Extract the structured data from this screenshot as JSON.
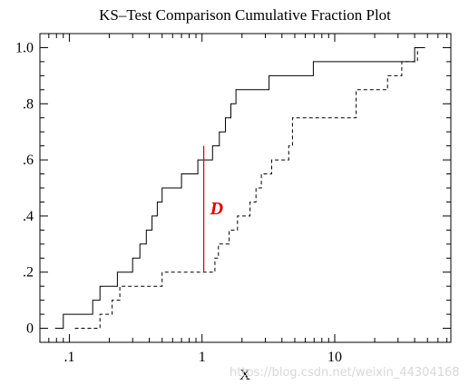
{
  "chart_data": {
    "type": "line",
    "title": "KS–Test Comparison Cumulative Fraction Plot",
    "xlabel": "X",
    "ylabel": "",
    "xscale": "log",
    "xlim": [
      0.06,
      75
    ],
    "ylim": [
      -0.05,
      1.05
    ],
    "grid": false,
    "xticks": [
      {
        "value": 0.1,
        "label": ".1"
      },
      {
        "value": 1,
        "label": "1"
      },
      {
        "value": 10,
        "label": "10"
      }
    ],
    "yticks": [
      {
        "value": 0,
        "label": "0"
      },
      {
        "value": 0.2,
        "label": ".2"
      },
      {
        "value": 0.4,
        "label": ".4"
      },
      {
        "value": 0.6,
        "label": ".6"
      },
      {
        "value": 0.8,
        "label": ".8"
      },
      {
        "value": 1.0,
        "label": "1.0"
      }
    ],
    "series": [
      {
        "style": "solid",
        "color": "#000000",
        "x": [
          0.078,
          0.09,
          0.15,
          0.17,
          0.23,
          0.3,
          0.34,
          0.38,
          0.42,
          0.46,
          0.5,
          0.7,
          0.93,
          1.2,
          1.35,
          1.5,
          1.65,
          1.8,
          3.2,
          6.9,
          40.0,
          48.0
        ],
        "y": [
          0.0,
          0.05,
          0.1,
          0.15,
          0.2,
          0.25,
          0.3,
          0.35,
          0.4,
          0.45,
          0.5,
          0.55,
          0.6,
          0.65,
          0.7,
          0.75,
          0.8,
          0.85,
          0.9,
          0.95,
          1.0,
          1.0
        ]
      },
      {
        "style": "dashed",
        "color": "#000000",
        "x": [
          0.11,
          0.17,
          0.21,
          0.24,
          0.5,
          1.0,
          1.25,
          1.33,
          1.6,
          1.85,
          2.3,
          2.55,
          2.8,
          3.35,
          4.5,
          4.8,
          14.5,
          25.0,
          32.0,
          40.0,
          42.0
        ],
        "y": [
          0.0,
          0.05,
          0.1,
          0.15,
          0.2,
          0.2,
          0.25,
          0.3,
          0.35,
          0.4,
          0.45,
          0.5,
          0.55,
          0.6,
          0.65,
          0.75,
          0.85,
          0.9,
          0.95,
          0.95,
          1.0
        ]
      }
    ],
    "annotations": [
      {
        "label": "D",
        "x": 1.03,
        "y_from": 0.2,
        "y_to": 0.65,
        "color": "#e00000"
      }
    ]
  },
  "watermark": "https://blog.csdn.net/weixin_44304168"
}
